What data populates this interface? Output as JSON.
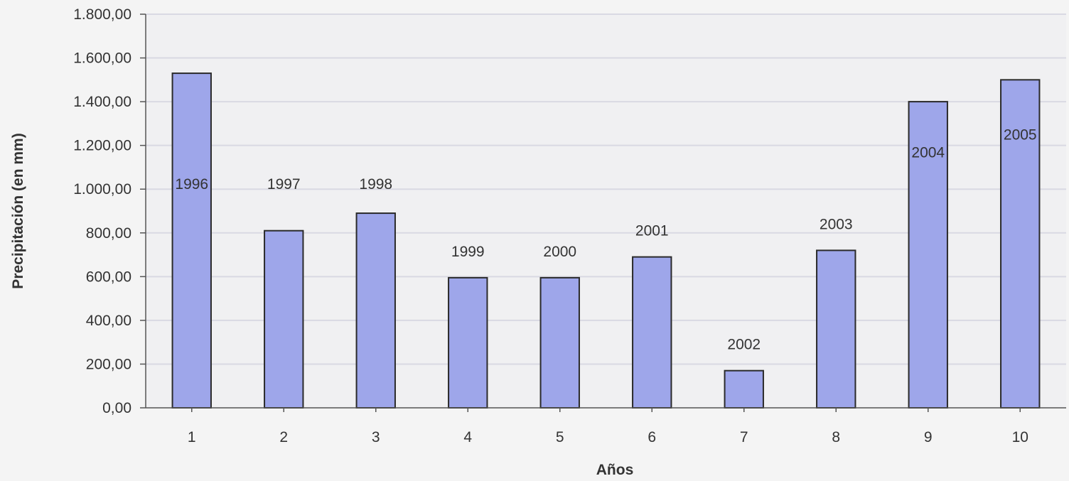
{
  "chart_data": {
    "type": "bar",
    "categories": [
      "1",
      "2",
      "3",
      "4",
      "5",
      "6",
      "7",
      "8",
      "9",
      "10"
    ],
    "values": [
      1530,
      810,
      890,
      595,
      595,
      690,
      170,
      720,
      1400,
      1500
    ],
    "data_labels": [
      "1996",
      "1997",
      "1998",
      "1999",
      "2000",
      "2001",
      "2002",
      "2003",
      "2004",
      "2005"
    ],
    "xlabel": "Años",
    "ylabel": "Precipitación (en mm)",
    "ylim": [
      0,
      1800
    ],
    "yticks": [
      0,
      200,
      400,
      600,
      800,
      1000,
      1200,
      1400,
      1600,
      1800
    ],
    "ytick_labels": [
      "0,00",
      "200,00",
      "400,00",
      "600,00",
      "800,00",
      "1.000,00",
      "1.200,00",
      "1.400,00",
      "1.600,00",
      "1.800,00"
    ],
    "grid": true,
    "legend": "none",
    "colors": {
      "bar_fill": "#9ea6ea",
      "bar_stroke": "#2a2a2a",
      "grid": "#d9d9e3",
      "background": "#f4f4f4"
    }
  }
}
